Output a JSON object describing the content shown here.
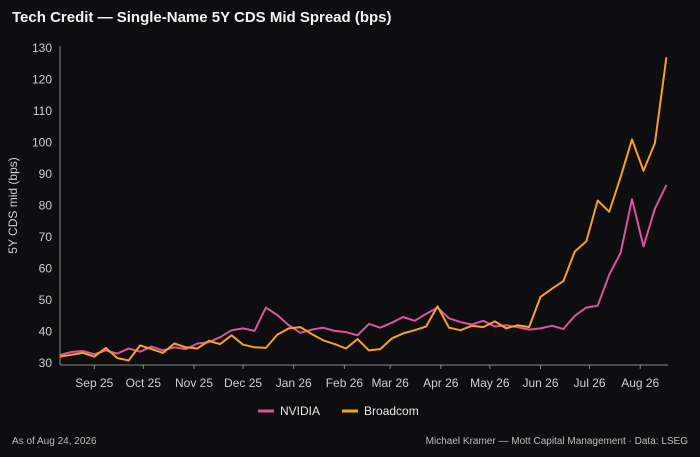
{
  "title": "Tech Credit — Single-Name 5Y CDS Mid Spread (bps)",
  "footer": {
    "left": "As of Aug 24, 2026",
    "right": "Michael Kramer — Mott Capital Management  ·  Data: LSEG"
  },
  "colors": {
    "nvidia": "#d9559b",
    "broadcom": "#f5a02a",
    "background": "#0e0e10"
  },
  "chart_data": {
    "type": "line",
    "title": "Tech Credit — Single-Name 5Y CDS Mid Spread (bps)",
    "xlabel": "",
    "ylabel": "5Y CDS mid (bps)",
    "ylim": [
      30,
      130
    ],
    "yticks": [
      30,
      40,
      50,
      60,
      70,
      80,
      90,
      100,
      110,
      120,
      130
    ],
    "xlim": [
      "2025-08-25",
      "2026-09-01"
    ],
    "xticks": [
      {
        "date": "2025-09-15",
        "label": "Sep 25"
      },
      {
        "date": "2025-10-15",
        "label": "Oct 25"
      },
      {
        "date": "2025-11-15",
        "label": "Nov 25"
      },
      {
        "date": "2025-12-15",
        "label": "Dec 25"
      },
      {
        "date": "2026-01-15",
        "label": "Jan 26"
      },
      {
        "date": "2026-02-15",
        "label": "Feb 26"
      },
      {
        "date": "2026-03-15",
        "label": "Mar 26"
      },
      {
        "date": "2026-04-15",
        "label": "Apr 26"
      },
      {
        "date": "2026-05-15",
        "label": "May 26"
      },
      {
        "date": "2026-06-15",
        "label": "Jun 26"
      },
      {
        "date": "2026-07-15",
        "label": "Jul 26"
      },
      {
        "date": "2026-08-15",
        "label": "Aug 26"
      }
    ],
    "grid": false,
    "legend": "bottom-center",
    "series": [
      {
        "name": "NVIDIA",
        "color": "#d9559b",
        "points": [
          [
            "2025-08-25",
            32.5
          ],
          [
            "2025-09-01",
            33.5
          ],
          [
            "2025-09-08",
            33.8
          ],
          [
            "2025-09-15",
            32.8
          ],
          [
            "2025-09-22",
            34.0
          ],
          [
            "2025-09-29",
            33.0
          ],
          [
            "2025-10-06",
            34.6
          ],
          [
            "2025-10-13",
            33.6
          ],
          [
            "2025-10-20",
            35.2
          ],
          [
            "2025-10-27",
            34.0
          ],
          [
            "2025-11-03",
            35.0
          ],
          [
            "2025-11-10",
            34.4
          ],
          [
            "2025-11-17",
            36.2
          ],
          [
            "2025-11-24",
            36.6
          ],
          [
            "2025-12-01",
            38.2
          ],
          [
            "2025-12-08",
            40.4
          ],
          [
            "2025-12-15",
            41.0
          ],
          [
            "2025-12-22",
            40.2
          ],
          [
            "2025-12-29",
            47.6
          ],
          [
            "2026-01-05",
            45.2
          ],
          [
            "2026-01-12",
            42.0
          ],
          [
            "2026-01-19",
            39.6
          ],
          [
            "2026-01-26",
            40.6
          ],
          [
            "2026-02-02",
            41.2
          ],
          [
            "2026-02-09",
            40.2
          ],
          [
            "2026-02-16",
            39.8
          ],
          [
            "2026-02-23",
            38.8
          ],
          [
            "2026-03-02",
            42.4
          ],
          [
            "2026-03-09",
            41.2
          ],
          [
            "2026-03-16",
            42.8
          ],
          [
            "2026-03-23",
            44.6
          ],
          [
            "2026-03-30",
            43.4
          ],
          [
            "2026-04-06",
            45.6
          ],
          [
            "2026-04-13",
            47.6
          ],
          [
            "2026-04-20",
            44.2
          ],
          [
            "2026-04-27",
            43.0
          ],
          [
            "2026-05-04",
            42.2
          ],
          [
            "2026-05-11",
            43.4
          ],
          [
            "2026-05-18",
            41.6
          ],
          [
            "2026-05-25",
            42.0
          ],
          [
            "2026-06-01",
            41.4
          ],
          [
            "2026-06-08",
            40.6
          ],
          [
            "2026-06-15",
            41.0
          ],
          [
            "2026-06-22",
            41.8
          ],
          [
            "2026-06-29",
            40.8
          ],
          [
            "2026-07-06",
            45.0
          ],
          [
            "2026-07-13",
            47.6
          ],
          [
            "2026-07-20",
            48.2
          ],
          [
            "2026-07-27",
            58.0
          ],
          [
            "2026-08-03",
            65.0
          ],
          [
            "2026-08-10",
            82.0
          ],
          [
            "2026-08-17",
            67.0
          ],
          [
            "2026-08-24",
            79.0
          ],
          [
            "2026-08-31",
            86.5
          ]
        ]
      },
      {
        "name": "Broadcom",
        "color": "#f5a02a",
        "points": [
          [
            "2025-08-25",
            32.0
          ],
          [
            "2025-09-01",
            32.6
          ],
          [
            "2025-09-08",
            33.2
          ],
          [
            "2025-09-15",
            32.0
          ],
          [
            "2025-09-22",
            34.8
          ],
          [
            "2025-09-29",
            31.6
          ],
          [
            "2025-10-06",
            30.8
          ],
          [
            "2025-10-13",
            35.6
          ],
          [
            "2025-10-20",
            34.4
          ],
          [
            "2025-10-27",
            33.2
          ],
          [
            "2025-11-03",
            36.2
          ],
          [
            "2025-11-10",
            35.0
          ],
          [
            "2025-11-17",
            34.6
          ],
          [
            "2025-11-24",
            37.0
          ],
          [
            "2025-12-01",
            36.0
          ],
          [
            "2025-12-08",
            38.8
          ],
          [
            "2025-12-15",
            35.8
          ],
          [
            "2025-12-22",
            35.0
          ],
          [
            "2025-12-29",
            34.8
          ],
          [
            "2026-01-05",
            39.0
          ],
          [
            "2026-01-12",
            41.0
          ],
          [
            "2026-01-19",
            41.4
          ],
          [
            "2026-01-26",
            39.2
          ],
          [
            "2026-02-02",
            37.2
          ],
          [
            "2026-02-09",
            36.0
          ],
          [
            "2026-02-16",
            34.6
          ],
          [
            "2026-02-23",
            37.6
          ],
          [
            "2026-03-02",
            34.0
          ],
          [
            "2026-03-09",
            34.4
          ],
          [
            "2026-03-16",
            37.8
          ],
          [
            "2026-03-23",
            39.4
          ],
          [
            "2026-03-30",
            40.4
          ],
          [
            "2026-04-06",
            41.6
          ],
          [
            "2026-04-13",
            48.0
          ],
          [
            "2026-04-20",
            41.2
          ],
          [
            "2026-04-27",
            40.4
          ],
          [
            "2026-05-04",
            41.8
          ],
          [
            "2026-05-11",
            41.4
          ],
          [
            "2026-05-18",
            43.2
          ],
          [
            "2026-05-25",
            41.0
          ],
          [
            "2026-06-01",
            42.0
          ],
          [
            "2026-06-08",
            41.4
          ],
          [
            "2026-06-15",
            51.0
          ],
          [
            "2026-06-22",
            53.6
          ],
          [
            "2026-06-29",
            56.0
          ],
          [
            "2026-07-06",
            65.4
          ],
          [
            "2026-07-13",
            68.6
          ],
          [
            "2026-07-20",
            81.6
          ],
          [
            "2026-07-27",
            78.0
          ],
          [
            "2026-08-03",
            89.0
          ],
          [
            "2026-08-10",
            101.0
          ],
          [
            "2026-08-17",
            91.0
          ],
          [
            "2026-08-24",
            99.8
          ],
          [
            "2026-08-31",
            127.0
          ]
        ]
      }
    ]
  }
}
